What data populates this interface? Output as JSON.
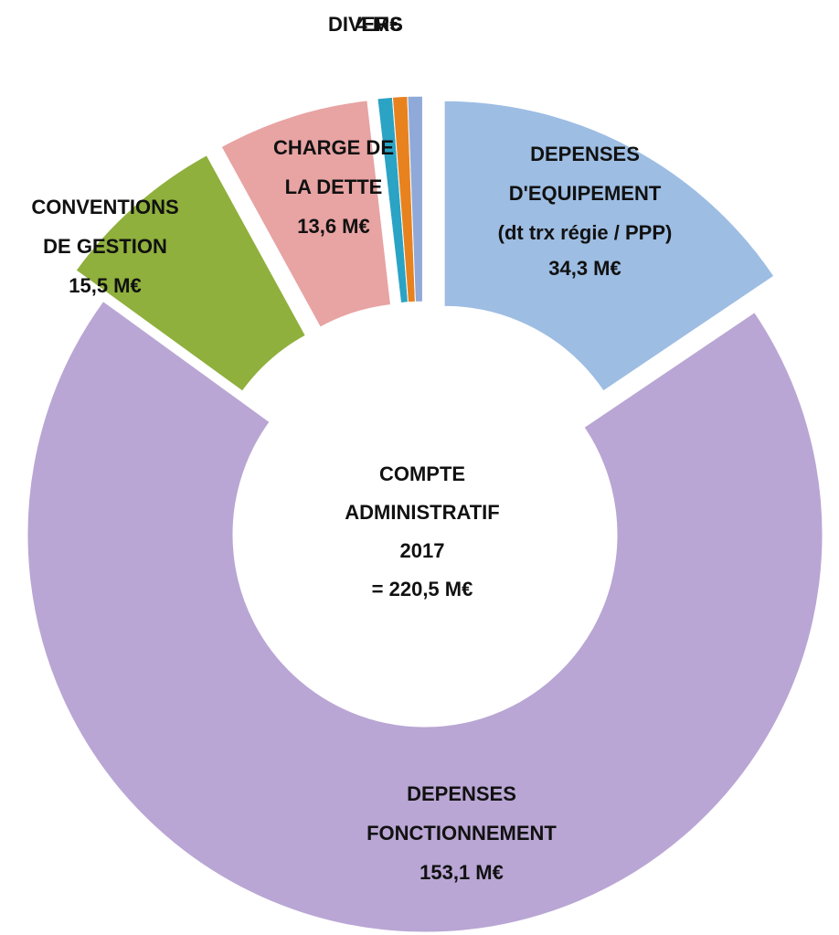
{
  "chart_data": {
    "type": "donut",
    "categories": [
      [
        "DEPENSES",
        "D'EQUIPEMENT",
        "(dt trx régie / PPP)"
      ],
      [
        "DEPENSES",
        "FONCTIONNEMENT"
      ],
      [
        "CONVENTIONS",
        "DE GESTION"
      ],
      [
        "CHARGE DE",
        "LA DETTE"
      ],
      [
        "DIVERS"
      ]
    ],
    "values": [
      34.3,
      153.1,
      15.5,
      13.6,
      4
    ],
    "value_labels": [
      "34,3 M€",
      "153,1 M€",
      "15,5 M€",
      "13,6 M€",
      "4 M€"
    ],
    "colors": [
      [
        "#9dbde3"
      ],
      [
        "#b9a6d4"
      ],
      [
        "#8fb03c"
      ],
      [
        "#e8a3a3"
      ],
      [
        "#2aa3c4",
        "#e8821e",
        "#8fa9d9"
      ]
    ],
    "center_text": [
      "COMPTE",
      "ADMINISTRATIF",
      "2017",
      "= 220,5 M€"
    ]
  }
}
